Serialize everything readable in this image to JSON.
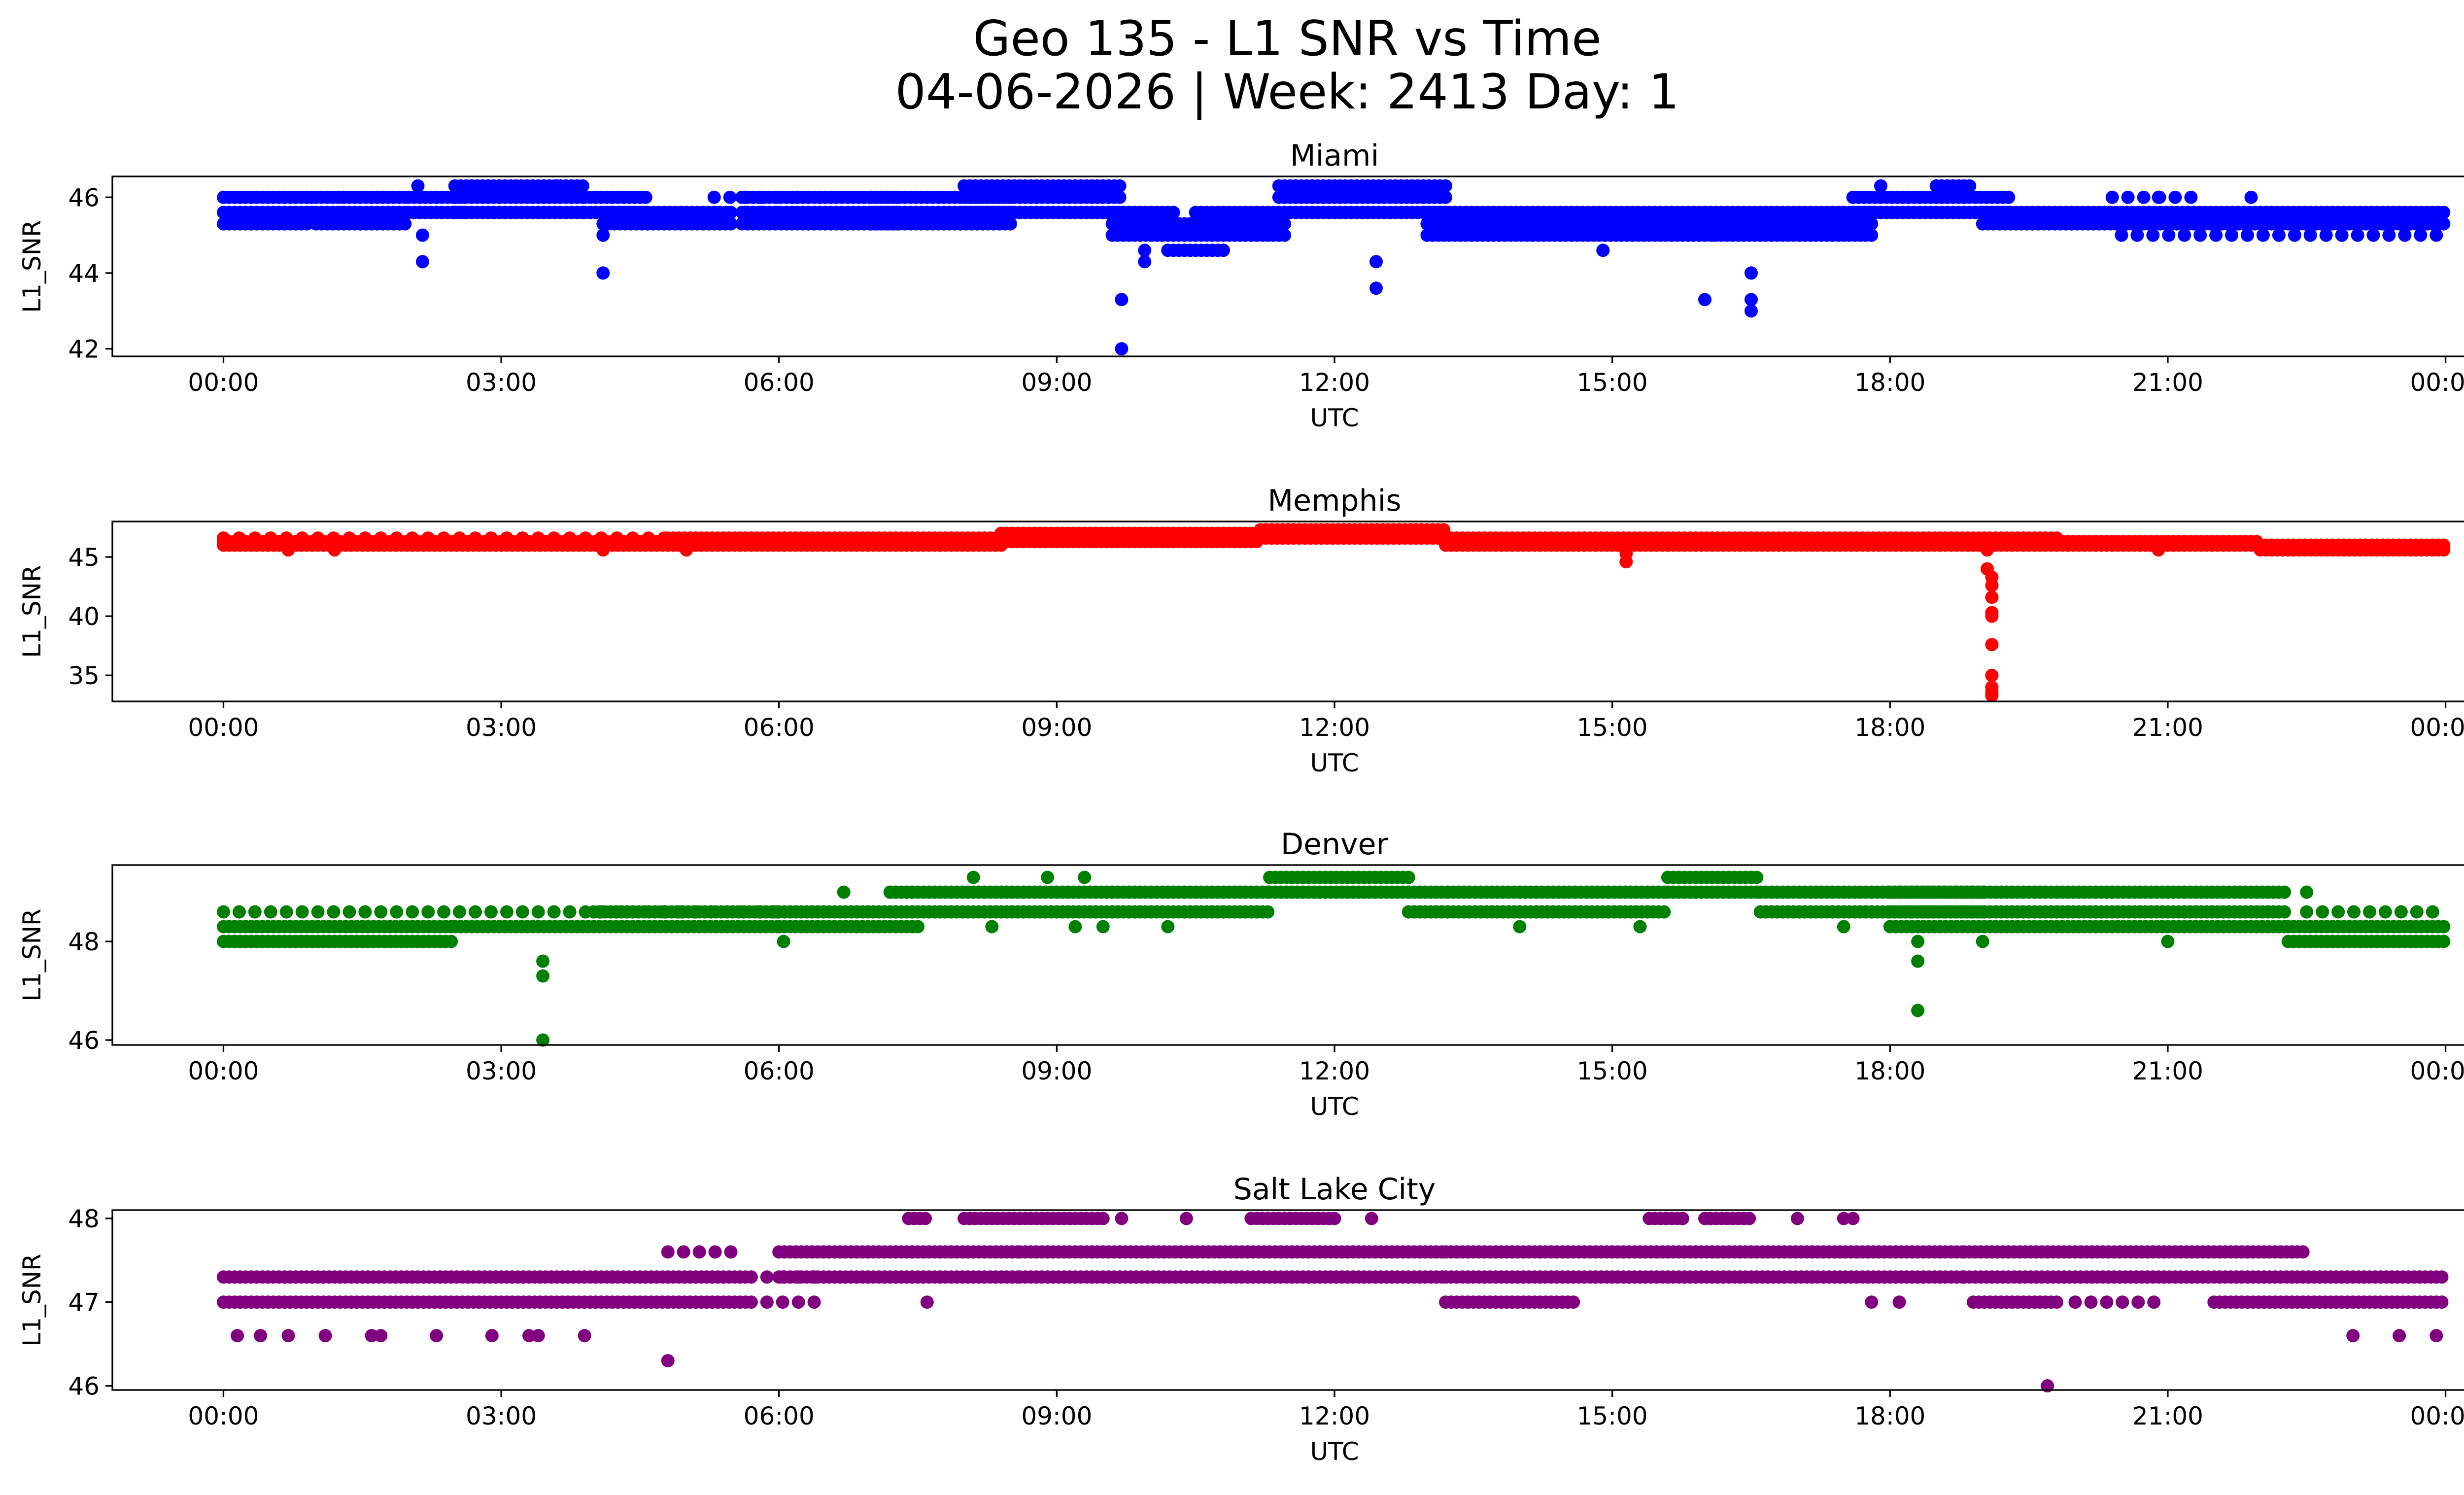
{
  "chart_data": {
    "type": "scatter",
    "title_line1": "Geo 135 - L1 SNR vs Time",
    "title_line2": "04-06-2026 | Week: 2413 Day: 1",
    "x_ticks": [
      "00:00",
      "03:00",
      "06:00",
      "09:00",
      "12:00",
      "15:00",
      "18:00",
      "21:00",
      "00:00"
    ],
    "x_tick_hours": [
      0,
      3,
      6,
      9,
      12,
      15,
      18,
      21,
      24
    ],
    "xlim_hours": [
      -1.2,
      25.2
    ],
    "panels": [
      {
        "title": "Miami",
        "color": "#0000ff",
        "xlabel": "UTC",
        "ylabel": "L1_SNR",
        "ylim": [
          41.8,
          46.55
        ],
        "y_ticks": [
          42,
          44,
          46
        ],
        "segments": [
          {
            "start": 0.0,
            "end": 0.95,
            "values": [
              45.3,
              45.6,
              46.0
            ],
            "dense": true
          },
          {
            "start": 0.95,
            "end": 1.3,
            "values": [
              45.6,
              46.0
            ],
            "dense": false
          },
          {
            "start": 1.0,
            "end": 2.0,
            "values": [
              45.3,
              45.6,
              46.0
            ],
            "dense": true
          },
          {
            "start": 2.0,
            "end": 2.6,
            "values": [
              45.6,
              46.0
            ],
            "dense": true
          },
          {
            "start": 2.5,
            "end": 3.9,
            "values": [
              45.6,
              46.0,
              46.3
            ],
            "dense": true
          },
          {
            "start": 3.9,
            "end": 4.6,
            "values": [
              45.6,
              46.0
            ],
            "dense": true
          },
          {
            "start": 4.1,
            "end": 5.5,
            "values": [
              45.3,
              45.6
            ],
            "dense": true
          },
          {
            "start": 5.3,
            "end": 6.2,
            "values": [
              45.6,
              46.0
            ],
            "dense": false
          },
          {
            "start": 5.6,
            "end": 7.3,
            "values": [
              45.3,
              45.6,
              46.0
            ],
            "dense": true
          },
          {
            "start": 7.0,
            "end": 8.5,
            "values": [
              45.3,
              45.6,
              46.0
            ],
            "dense": true
          },
          {
            "start": 8.0,
            "end": 9.7,
            "values": [
              45.6,
              46.0,
              46.3
            ],
            "dense": true
          },
          {
            "start": 9.6,
            "end": 10.3,
            "values": [
              45.0,
              45.3,
              45.6
            ],
            "dense": true
          },
          {
            "start": 10.2,
            "end": 10.8,
            "values": [
              44.6,
              45.0,
              45.3
            ],
            "dense": true
          },
          {
            "start": 10.5,
            "end": 11.5,
            "values": [
              45.0,
              45.3,
              45.6
            ],
            "dense": true
          },
          {
            "start": 11.4,
            "end": 12.4,
            "values": [
              45.6,
              46.0,
              46.3
            ],
            "dense": true
          },
          {
            "start": 12.0,
            "end": 13.2,
            "values": [
              45.6,
              46.0,
              46.3
            ],
            "dense": true
          },
          {
            "start": 13.0,
            "end": 17.8,
            "values": [
              45.0,
              45.3,
              45.6
            ],
            "dense": true
          },
          {
            "start": 17.6,
            "end": 19.3,
            "values": [
              45.6,
              46.0
            ],
            "dense": true
          },
          {
            "start": 18.5,
            "end": 18.9,
            "values": [
              46.3
            ],
            "dense": true
          },
          {
            "start": 19.0,
            "end": 24.0,
            "values": [
              45.3,
              45.6
            ],
            "dense": true
          },
          {
            "start": 20.5,
            "end": 23.9,
            "values": [
              45.0
            ],
            "dense": false
          },
          {
            "start": 20.4,
            "end": 21.4,
            "values": [
              46.0
            ],
            "dense": false
          }
        ],
        "outliers": [
          [
            2.15,
            45.0
          ],
          [
            2.15,
            44.3
          ],
          [
            2.1,
            46.3
          ],
          [
            4.1,
            45.0
          ],
          [
            4.1,
            44.0
          ],
          [
            3.6,
            46.3
          ],
          [
            9.7,
            43.3
          ],
          [
            9.7,
            42.0
          ],
          [
            9.95,
            44.6
          ],
          [
            9.95,
            44.3
          ],
          [
            12.45,
            44.3
          ],
          [
            12.45,
            43.6
          ],
          [
            14.9,
            44.6
          ],
          [
            16.0,
            43.3
          ],
          [
            16.5,
            44.0
          ],
          [
            16.5,
            43.3
          ],
          [
            16.5,
            43.0
          ],
          [
            17.9,
            46.3
          ],
          [
            20.9,
            46.0
          ],
          [
            21.9,
            46.0
          ],
          [
            16.1,
            45.0
          ]
        ]
      },
      {
        "title": "Memphis",
        "color": "#ff0000",
        "xlabel": "UTC",
        "ylabel": "L1_SNR",
        "ylim": [
          32.8,
          48.0
        ],
        "y_ticks": [
          35,
          40,
          45
        ],
        "segments": [
          {
            "start": 0.0,
            "end": 4.8,
            "values": [
              46.0,
              46.3
            ],
            "dense": true
          },
          {
            "start": 0.0,
            "end": 4.8,
            "values": [
              46.6
            ],
            "dense": false
          },
          {
            "start": 4.8,
            "end": 8.4,
            "values": [
              46.0,
              46.3,
              46.6
            ],
            "dense": true
          },
          {
            "start": 8.4,
            "end": 11.2,
            "values": [
              46.3,
              46.6,
              47.0
            ],
            "dense": true
          },
          {
            "start": 11.2,
            "end": 13.2,
            "values": [
              46.6,
              47.0,
              47.3
            ],
            "dense": true
          },
          {
            "start": 13.2,
            "end": 19.8,
            "values": [
              46.0,
              46.3,
              46.6
            ],
            "dense": true
          },
          {
            "start": 19.8,
            "end": 22.0,
            "values": [
              46.0,
              46.3
            ],
            "dense": true
          },
          {
            "start": 22.0,
            "end": 24.0,
            "values": [
              45.6,
              46.0
            ],
            "dense": true
          }
        ],
        "outliers": [
          [
            0.7,
            45.6
          ],
          [
            1.2,
            45.6
          ],
          [
            4.1,
            45.6
          ],
          [
            5.0,
            45.6
          ],
          [
            15.15,
            45.3
          ],
          [
            15.15,
            44.6
          ],
          [
            19.05,
            45.6
          ],
          [
            19.05,
            44.0
          ],
          [
            19.1,
            43.3
          ],
          [
            19.1,
            42.6
          ],
          [
            19.1,
            41.6
          ],
          [
            19.1,
            40.3
          ],
          [
            19.1,
            40.0
          ],
          [
            19.1,
            37.6
          ],
          [
            19.1,
            35.0
          ],
          [
            19.1,
            34.0
          ],
          [
            19.1,
            33.6
          ],
          [
            19.1,
            33.3
          ],
          [
            20.9,
            45.6
          ]
        ]
      },
      {
        "title": "Denver",
        "color": "#008000",
        "xlabel": "UTC",
        "ylabel": "L1_SNR",
        "ylim": [
          45.9,
          49.55
        ],
        "y_ticks": [
          46,
          48
        ],
        "segments": [
          {
            "start": 0.0,
            "end": 2.5,
            "values": [
              48.0,
              48.3
            ],
            "dense": true
          },
          {
            "start": 0.0,
            "end": 6.0,
            "values": [
              48.6
            ],
            "dense": false
          },
          {
            "start": 2.5,
            "end": 6.0,
            "values": [
              48.3
            ],
            "dense": true
          },
          {
            "start": 4.0,
            "end": 6.0,
            "values": [
              48.6
            ],
            "dense": true
          },
          {
            "start": 6.0,
            "end": 7.5,
            "values": [
              48.3,
              48.6
            ],
            "dense": true
          },
          {
            "start": 7.2,
            "end": 11.3,
            "values": [
              48.6,
              49.0
            ],
            "dense": true
          },
          {
            "start": 11.3,
            "end": 12.8,
            "values": [
              49.0,
              49.3
            ],
            "dense": true
          },
          {
            "start": 12.8,
            "end": 15.6,
            "values": [
              48.6,
              49.0
            ],
            "dense": true
          },
          {
            "start": 15.6,
            "end": 16.6,
            "values": [
              49.0,
              49.3
            ],
            "dense": true
          },
          {
            "start": 16.6,
            "end": 19.0,
            "values": [
              48.6,
              49.0
            ],
            "dense": true
          },
          {
            "start": 18.0,
            "end": 22.3,
            "values": [
              48.3,
              48.6,
              49.0
            ],
            "dense": true
          },
          {
            "start": 22.3,
            "end": 24.0,
            "values": [
              48.0,
              48.3
            ],
            "dense": true
          },
          {
            "start": 22.5,
            "end": 24.0,
            "values": [
              48.6
            ],
            "dense": false
          }
        ],
        "outliers": [
          [
            3.45,
            47.6
          ],
          [
            3.45,
            47.3
          ],
          [
            3.45,
            46.0
          ],
          [
            6.05,
            48.0
          ],
          [
            6.7,
            49.0
          ],
          [
            8.1,
            49.3
          ],
          [
            8.3,
            48.3
          ],
          [
            8.9,
            49.3
          ],
          [
            9.3,
            49.3
          ],
          [
            9.2,
            48.3
          ],
          [
            9.5,
            48.3
          ],
          [
            10.2,
            48.3
          ],
          [
            14.0,
            48.3
          ],
          [
            15.3,
            48.3
          ],
          [
            17.5,
            48.3
          ],
          [
            18.3,
            48.0
          ],
          [
            18.3,
            47.6
          ],
          [
            18.3,
            46.6
          ],
          [
            19.0,
            48.0
          ],
          [
            21.0,
            48.0
          ],
          [
            22.5,
            49.0
          ]
        ]
      },
      {
        "title": "Salt Lake City",
        "color": "#800080",
        "xlabel": "UTC",
        "ylabel": "L1_SNR",
        "ylim": [
          45.95,
          48.1
        ],
        "y_ticks": [
          46,
          47,
          48
        ],
        "segments": [
          {
            "start": 0.0,
            "end": 5.7,
            "values": [
              47.0,
              47.3
            ],
            "dense": true
          },
          {
            "start": 4.8,
            "end": 5.6,
            "values": [
              47.6
            ],
            "dense": false
          },
          {
            "start": 5.7,
            "end": 6.5,
            "values": [
              47.0,
              47.3
            ],
            "dense": false
          },
          {
            "start": 6.0,
            "end": 8.6,
            "values": [
              47.3,
              47.6
            ],
            "dense": true
          },
          {
            "start": 7.4,
            "end": 7.6,
            "values": [
              48.0
            ],
            "dense": true
          },
          {
            "start": 8.0,
            "end": 9.5,
            "values": [
              48.0
            ],
            "dense": true
          },
          {
            "start": 8.6,
            "end": 12.8,
            "values": [
              47.3,
              47.6
            ],
            "dense": true
          },
          {
            "start": 11.1,
            "end": 12.0,
            "values": [
              48.0
            ],
            "dense": true
          },
          {
            "start": 12.8,
            "end": 13.2,
            "values": [
              47.3,
              47.6
            ],
            "dense": true
          },
          {
            "start": 13.2,
            "end": 14.6,
            "values": [
              47.0
            ],
            "dense": true
          },
          {
            "start": 13.2,
            "end": 15.0,
            "values": [
              47.3,
              47.6
            ],
            "dense": true
          },
          {
            "start": 15.0,
            "end": 18.8,
            "values": [
              47.3,
              47.6
            ],
            "dense": true
          },
          {
            "start": 15.4,
            "end": 15.8,
            "values": [
              48.0
            ],
            "dense": true
          },
          {
            "start": 16.0,
            "end": 16.5,
            "values": [
              48.0
            ],
            "dense": true
          },
          {
            "start": 18.8,
            "end": 22.5,
            "values": [
              47.3,
              47.6
            ],
            "dense": true
          },
          {
            "start": 18.9,
            "end": 19.8,
            "values": [
              47.0
            ],
            "dense": true
          },
          {
            "start": 20.0,
            "end": 21.0,
            "values": [
              47.0
            ],
            "dense": false
          },
          {
            "start": 21.5,
            "end": 24.0,
            "values": [
              47.0,
              47.3
            ],
            "dense": true
          }
        ],
        "outliers": [
          [
            0.15,
            46.6
          ],
          [
            0.4,
            46.6
          ],
          [
            0.7,
            46.6
          ],
          [
            1.1,
            46.6
          ],
          [
            1.6,
            46.6
          ],
          [
            1.7,
            46.6
          ],
          [
            2.3,
            46.6
          ],
          [
            2.9,
            46.6
          ],
          [
            3.3,
            46.6
          ],
          [
            3.4,
            46.6
          ],
          [
            3.9,
            46.6
          ],
          [
            4.8,
            46.3
          ],
          [
            7.6,
            47.0
          ],
          [
            9.7,
            48.0
          ],
          [
            10.4,
            48.0
          ],
          [
            12.4,
            48.0
          ],
          [
            17.0,
            48.0
          ],
          [
            17.5,
            48.0
          ],
          [
            17.6,
            48.0
          ],
          [
            17.8,
            47.0
          ],
          [
            18.1,
            47.0
          ],
          [
            19.7,
            46.0
          ],
          [
            23.0,
            46.6
          ],
          [
            23.5,
            46.6
          ],
          [
            23.9,
            46.6
          ]
        ]
      }
    ]
  }
}
